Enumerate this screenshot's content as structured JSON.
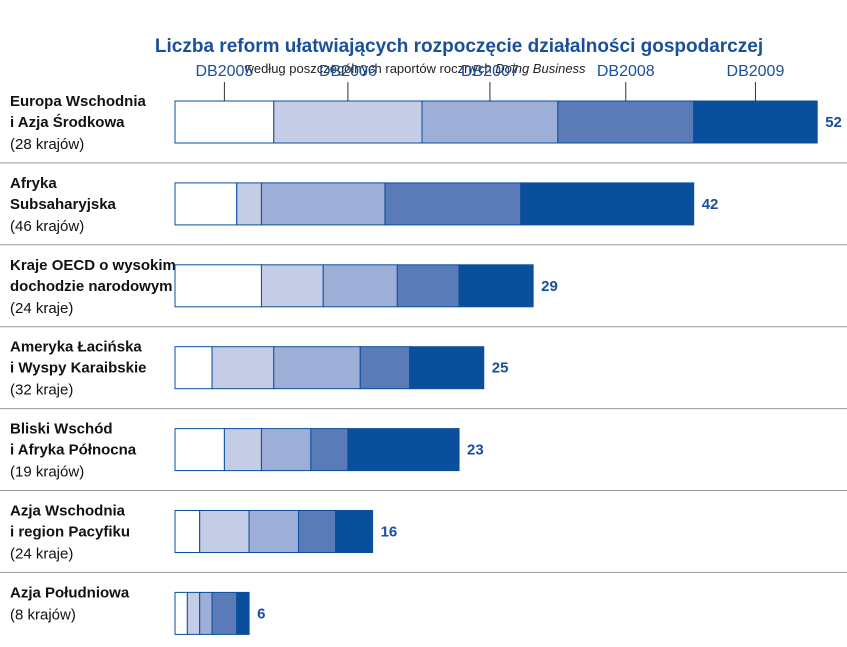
{
  "chart_data": {
    "type": "stacked-bar-horizontal",
    "title": "Liczba reform ułatwiających rozpoczęcie działalności gospodarczej",
    "subtitle": "według poszczególnych raportów rocznych",
    "subtitle_italic": "Doing Business",
    "categories": [
      [
        "Europa Wschodnia",
        "i Azja Środkowa"
      ],
      [
        "Afryka",
        "Subsaharyjska"
      ],
      [
        "Kraje OECD o wysokim",
        "dochodzie narodowym"
      ],
      [
        "Ameryka Łacińska",
        "i Wyspy Karaibskie"
      ],
      [
        "Bliski Wschód",
        "i Afryka Północna"
      ],
      [
        "Azja Wschodnia",
        "i region Pacyfiku"
      ],
      [
        "Azja Południowa"
      ]
    ],
    "category_notes": [
      "(28 krajów)",
      "(46 krajów)",
      "(24 kraje)",
      "(32 kraje)",
      "(19 krajów)",
      "(24 kraje)",
      "(8 krajów)"
    ],
    "series": [
      {
        "name": "DB2005",
        "color": "#ffffff",
        "values": [
          8,
          5,
          7,
          3,
          4,
          2,
          1
        ]
      },
      {
        "name": "DB2006",
        "color": "#c5cce6",
        "values": [
          12,
          2,
          5,
          5,
          3,
          4,
          1
        ]
      },
      {
        "name": "DB2007",
        "color": "#9dafd6",
        "values": [
          11,
          10,
          6,
          7,
          4,
          4,
          1
        ]
      },
      {
        "name": "DB2008",
        "color": "#5b7ab8",
        "values": [
          11,
          11,
          5,
          4,
          3,
          3,
          2
        ]
      },
      {
        "name": "DB2009",
        "color": "#0a4f9c",
        "values": [
          10,
          14,
          6,
          6,
          9,
          3,
          1
        ]
      }
    ],
    "totals": [
      52,
      42,
      29,
      25,
      23,
      16,
      6
    ]
  }
}
